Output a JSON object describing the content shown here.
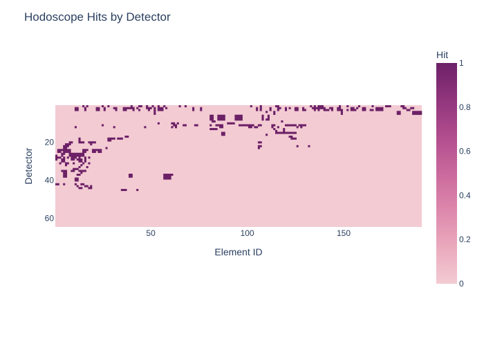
{
  "chart_data": {
    "type": "heatmap",
    "title": "Hodoscope Hits by Detector",
    "xlabel": "Element ID",
    "ylabel": "Detector",
    "colorbar_title": "Hit",
    "x_range": [
      1,
      190
    ],
    "y_range": [
      1,
      64
    ],
    "y_reversed": true,
    "x_ticks": [
      50,
      100,
      150
    ],
    "y_ticks": [
      20,
      40,
      60
    ],
    "z_range": [
      0,
      1
    ],
    "colorbar_ticks": [
      0,
      0.2,
      0.4,
      0.6,
      0.8,
      1
    ],
    "colorscale": [
      "#f3cbd3",
      "#eaa9bd",
      "#dd88ac",
      "#ca699d",
      "#b14d8e",
      "#91357d",
      "#6c2167"
    ],
    "hits": [
      [
        1,
        15
      ],
      [
        1,
        17
      ],
      [
        1,
        25
      ],
      [
        1,
        28
      ],
      [
        1,
        40
      ],
      [
        1,
        44
      ],
      [
        1,
        45
      ],
      [
        1,
        48
      ],
      [
        1,
        51
      ],
      [
        1,
        54
      ],
      [
        1,
        57
      ],
      [
        1,
        65
      ],
      [
        1,
        68
      ],
      [
        1,
        102
      ],
      [
        1,
        107
      ],
      [
        1,
        115
      ],
      [
        1,
        116
      ],
      [
        1,
        133
      ],
      [
        1,
        135
      ],
      [
        1,
        137
      ],
      [
        1,
        138
      ],
      [
        1,
        139
      ],
      [
        1,
        148
      ],
      [
        1,
        152
      ],
      [
        1,
        158
      ],
      [
        1,
        165
      ],
      [
        1,
        172
      ],
      [
        1,
        173
      ],
      [
        1,
        174
      ],
      [
        1,
        180
      ],
      [
        1,
        181
      ],
      [
        2,
        11
      ],
      [
        2,
        12
      ],
      [
        2,
        16
      ],
      [
        2,
        22
      ],
      [
        2,
        23
      ],
      [
        2,
        26
      ],
      [
        2,
        31
      ],
      [
        2,
        32
      ],
      [
        2,
        36
      ],
      [
        2,
        37
      ],
      [
        2,
        38
      ],
      [
        2,
        39
      ],
      [
        2,
        40
      ],
      [
        2,
        41
      ],
      [
        2,
        43
      ],
      [
        2,
        48
      ],
      [
        2,
        49
      ],
      [
        2,
        50
      ],
      [
        2,
        52
      ],
      [
        2,
        54
      ],
      [
        2,
        55
      ],
      [
        2,
        56
      ],
      [
        2,
        58
      ],
      [
        2,
        72
      ],
      [
        2,
        76
      ],
      [
        2,
        105
      ],
      [
        2,
        107
      ],
      [
        2,
        112
      ],
      [
        2,
        116
      ],
      [
        2,
        117
      ],
      [
        2,
        120
      ],
      [
        2,
        122
      ],
      [
        2,
        125
      ],
      [
        2,
        126
      ],
      [
        2,
        129
      ],
      [
        2,
        134
      ],
      [
        2,
        135
      ],
      [
        2,
        136
      ],
      [
        2,
        137
      ],
      [
        2,
        138
      ],
      [
        2,
        139
      ],
      [
        2,
        140
      ],
      [
        2,
        143
      ],
      [
        2,
        144
      ],
      [
        2,
        147
      ],
      [
        2,
        148
      ],
      [
        2,
        154
      ],
      [
        2,
        155
      ],
      [
        2,
        157
      ],
      [
        2,
        160
      ],
      [
        2,
        161
      ],
      [
        2,
        167
      ],
      [
        2,
        168
      ],
      [
        2,
        169
      ],
      [
        2,
        170
      ],
      [
        2,
        181
      ],
      [
        2,
        182
      ],
      [
        2,
        185
      ],
      [
        2,
        186
      ],
      [
        3,
        11
      ],
      [
        3,
        12
      ],
      [
        3,
        16
      ],
      [
        3,
        22
      ],
      [
        3,
        23
      ],
      [
        3,
        26
      ],
      [
        3,
        32
      ],
      [
        3,
        36
      ],
      [
        3,
        37
      ],
      [
        3,
        41
      ],
      [
        3,
        44
      ],
      [
        3,
        49
      ],
      [
        3,
        52
      ],
      [
        3,
        54
      ],
      [
        3,
        55
      ],
      [
        3,
        56
      ],
      [
        3,
        72
      ],
      [
        3,
        76
      ],
      [
        3,
        105
      ],
      [
        3,
        107
      ],
      [
        3,
        112
      ],
      [
        3,
        116
      ],
      [
        3,
        120
      ],
      [
        3,
        125
      ],
      [
        3,
        126
      ],
      [
        3,
        129
      ],
      [
        3,
        130
      ],
      [
        3,
        135
      ],
      [
        3,
        137
      ],
      [
        3,
        140
      ],
      [
        3,
        141
      ],
      [
        3,
        142
      ],
      [
        3,
        144
      ],
      [
        3,
        147
      ],
      [
        3,
        148
      ],
      [
        3,
        149
      ],
      [
        3,
        152
      ],
      [
        3,
        154
      ],
      [
        3,
        155
      ],
      [
        3,
        156
      ],
      [
        3,
        160
      ],
      [
        3,
        161
      ],
      [
        3,
        164
      ],
      [
        3,
        165
      ],
      [
        3,
        167
      ],
      [
        3,
        168
      ],
      [
        3,
        169
      ],
      [
        3,
        170
      ],
      [
        3,
        183
      ],
      [
        3,
        184
      ],
      [
        4,
        52
      ],
      [
        4,
        110
      ],
      [
        4,
        114
      ],
      [
        4,
        149
      ],
      [
        4,
        178
      ],
      [
        4,
        179
      ],
      [
        4,
        186
      ],
      [
        4,
        187
      ],
      [
        4,
        188
      ],
      [
        4,
        189
      ],
      [
        4,
        190
      ],
      [
        5,
        52
      ],
      [
        5,
        114
      ],
      [
        5,
        149
      ],
      [
        5,
        178
      ],
      [
        5,
        179
      ],
      [
        5,
        186
      ],
      [
        5,
        187
      ],
      [
        5,
        188
      ],
      [
        5,
        189
      ],
      [
        5,
        190
      ],
      [
        6,
        81
      ],
      [
        6,
        82
      ],
      [
        6,
        81
      ],
      [
        6,
        85
      ],
      [
        6,
        86
      ],
      [
        6,
        87
      ],
      [
        6,
        88
      ],
      [
        6,
        94
      ],
      [
        6,
        95
      ],
      [
        6,
        96
      ],
      [
        6,
        97
      ],
      [
        6,
        108
      ],
      [
        6,
        111
      ],
      [
        7,
        81
      ],
      [
        7,
        82
      ],
      [
        7,
        85
      ],
      [
        7,
        86
      ],
      [
        7,
        87
      ],
      [
        7,
        88
      ],
      [
        7,
        94
      ],
      [
        7,
        95
      ],
      [
        7,
        96
      ],
      [
        7,
        97
      ],
      [
        7,
        108
      ],
      [
        7,
        111
      ],
      [
        8,
        81
      ],
      [
        8,
        82
      ],
      [
        8,
        85
      ],
      [
        8,
        86
      ],
      [
        8,
        87
      ],
      [
        8,
        88
      ],
      [
        8,
        94
      ],
      [
        8,
        95
      ],
      [
        8,
        96
      ],
      [
        8,
        97
      ],
      [
        8,
        108
      ],
      [
        8,
        110
      ],
      [
        8,
        111
      ],
      [
        9,
        82
      ],
      [
        9,
        83
      ],
      [
        9,
        118
      ],
      [
        10,
        54
      ],
      [
        10,
        61
      ],
      [
        10,
        62
      ],
      [
        10,
        64
      ],
      [
        10,
        90
      ],
      [
        10,
        91
      ],
      [
        10,
        92
      ],
      [
        10,
        93
      ],
      [
        11,
        25
      ],
      [
        11,
        62
      ],
      [
        11,
        63
      ],
      [
        11,
        67
      ],
      [
        11,
        68
      ],
      [
        11,
        73
      ],
      [
        11,
        74
      ],
      [
        11,
        81
      ],
      [
        11,
        84
      ],
      [
        11,
        85
      ],
      [
        11,
        86
      ],
      [
        11,
        87
      ],
      [
        11,
        96
      ],
      [
        11,
        97
      ],
      [
        11,
        98
      ],
      [
        11,
        99
      ],
      [
        11,
        100
      ],
      [
        11,
        101
      ],
      [
        11,
        102
      ],
      [
        11,
        103
      ],
      [
        11,
        106
      ],
      [
        11,
        107
      ],
      [
        11,
        113
      ],
      [
        11,
        114
      ],
      [
        11,
        120
      ],
      [
        11,
        121
      ],
      [
        11,
        122
      ],
      [
        11,
        123
      ],
      [
        11,
        124
      ],
      [
        11,
        125
      ],
      [
        11,
        127
      ],
      [
        11,
        128
      ],
      [
        11,
        129
      ],
      [
        11,
        130
      ],
      [
        12,
        11
      ],
      [
        12,
        31
      ],
      [
        12,
        47
      ],
      [
        12,
        61
      ],
      [
        12,
        63
      ],
      [
        12,
        86
      ],
      [
        12,
        87
      ],
      [
        12,
        101
      ],
      [
        12,
        102
      ],
      [
        12,
        104
      ],
      [
        12,
        105
      ],
      [
        12,
        113
      ],
      [
        12,
        116
      ],
      [
        12,
        126
      ],
      [
        12,
        128
      ],
      [
        13,
        81
      ],
      [
        13,
        82
      ],
      [
        13,
        83
      ],
      [
        13,
        84
      ],
      [
        13,
        114
      ],
      [
        13,
        119
      ],
      [
        14,
        115
      ],
      [
        14,
        119
      ],
      [
        15,
        87
      ],
      [
        15,
        88
      ],
      [
        15,
        115
      ],
      [
        15,
        116
      ],
      [
        15,
        117
      ],
      [
        15,
        118
      ],
      [
        15,
        119
      ],
      [
        15,
        120
      ],
      [
        15,
        121
      ],
      [
        15,
        122
      ],
      [
        15,
        123
      ],
      [
        15,
        124
      ],
      [
        15,
        125
      ],
      [
        16,
        87
      ],
      [
        16,
        88
      ],
      [
        16,
        110
      ],
      [
        17,
        37
      ],
      [
        17,
        38
      ],
      [
        17,
        122
      ],
      [
        17,
        123
      ],
      [
        18,
        13
      ],
      [
        18,
        28
      ],
      [
        18,
        29
      ],
      [
        18,
        30
      ],
      [
        18,
        31
      ],
      [
        18,
        33
      ],
      [
        18,
        34
      ],
      [
        18,
        35
      ],
      [
        18,
        123
      ],
      [
        18,
        124
      ],
      [
        18,
        125
      ],
      [
        19,
        13
      ],
      [
        19,
        28
      ],
      [
        19,
        29
      ],
      [
        20,
        8
      ],
      [
        20,
        9
      ],
      [
        20,
        13
      ],
      [
        20,
        14
      ],
      [
        20,
        15
      ],
      [
        20,
        18
      ],
      [
        20,
        19
      ],
      [
        20,
        20
      ],
      [
        20,
        21
      ],
      [
        20,
        106
      ],
      [
        20,
        107
      ],
      [
        21,
        6
      ],
      [
        21,
        7
      ],
      [
        21,
        8
      ],
      [
        21,
        19
      ],
      [
        22,
        5
      ],
      [
        22,
        6
      ],
      [
        22,
        7
      ],
      [
        22,
        106
      ],
      [
        22,
        107
      ],
      [
        22,
        126
      ],
      [
        22,
        132
      ],
      [
        23,
        5
      ],
      [
        23,
        6
      ],
      [
        23,
        27
      ],
      [
        23,
        106
      ],
      [
        24,
        2
      ],
      [
        24,
        3
      ],
      [
        24,
        4
      ],
      [
        24,
        5
      ],
      [
        24,
        6
      ],
      [
        24,
        7
      ],
      [
        24,
        8
      ],
      [
        24,
        15
      ],
      [
        24,
        16
      ],
      [
        24,
        17
      ],
      [
        24,
        20
      ],
      [
        24,
        21
      ],
      [
        24,
        22
      ],
      [
        24,
        23
      ],
      [
        24,
        24
      ],
      [
        25,
        2
      ],
      [
        25,
        3
      ],
      [
        25,
        5
      ],
      [
        25,
        6
      ],
      [
        25,
        7
      ],
      [
        25,
        8
      ],
      [
        25,
        15
      ],
      [
        25,
        16
      ],
      [
        25,
        20
      ],
      [
        25,
        21
      ],
      [
        25,
        23
      ],
      [
        25,
        24
      ],
      [
        26,
        4
      ],
      [
        26,
        5
      ],
      [
        26,
        8
      ],
      [
        26,
        9
      ],
      [
        26,
        10
      ],
      [
        26,
        11
      ],
      [
        26,
        12
      ],
      [
        26,
        13
      ],
      [
        26,
        14
      ],
      [
        26,
        15
      ],
      [
        27,
        1
      ],
      [
        27,
        4
      ],
      [
        27,
        8
      ],
      [
        27,
        9
      ],
      [
        27,
        10
      ],
      [
        27,
        11
      ],
      [
        27,
        12
      ],
      [
        27,
        13
      ],
      [
        27,
        14
      ],
      [
        27,
        15
      ],
      [
        28,
        1
      ],
      [
        28,
        2
      ],
      [
        28,
        3
      ],
      [
        28,
        5
      ],
      [
        28,
        7
      ],
      [
        28,
        9
      ],
      [
        28,
        10
      ],
      [
        28,
        11
      ],
      [
        28,
        13
      ],
      [
        28,
        16
      ],
      [
        28,
        18
      ],
      [
        29,
        1
      ],
      [
        29,
        4
      ],
      [
        29,
        5
      ],
      [
        29,
        9
      ],
      [
        29,
        10
      ],
      [
        29,
        12
      ],
      [
        29,
        13
      ],
      [
        29,
        14
      ],
      [
        29,
        16
      ],
      [
        30,
        4
      ],
      [
        30,
        5
      ],
      [
        30,
        13
      ],
      [
        30,
        14
      ],
      [
        30,
        16
      ],
      [
        31,
        3
      ],
      [
        31,
        6
      ],
      [
        31,
        7
      ],
      [
        31,
        10
      ],
      [
        31,
        15
      ],
      [
        31,
        18
      ],
      [
        32,
        6
      ],
      [
        32,
        14
      ],
      [
        33,
        13
      ],
      [
        33,
        17
      ],
      [
        34,
        10
      ],
      [
        34,
        11
      ],
      [
        34,
        12
      ],
      [
        35,
        4
      ],
      [
        35,
        5
      ],
      [
        35,
        6
      ],
      [
        35,
        9
      ],
      [
        35,
        10
      ],
      [
        35,
        13
      ],
      [
        35,
        14
      ],
      [
        35,
        15
      ],
      [
        35,
        16
      ],
      [
        36,
        5
      ],
      [
        36,
        6
      ],
      [
        36,
        14
      ],
      [
        37,
        5
      ],
      [
        37,
        6
      ],
      [
        37,
        12
      ],
      [
        37,
        13
      ],
      [
        37,
        39
      ],
      [
        37,
        40
      ],
      [
        37,
        57
      ],
      [
        37,
        58
      ],
      [
        37,
        59
      ],
      [
        37,
        60
      ],
      [
        37,
        61
      ],
      [
        38,
        5
      ],
      [
        38,
        6
      ],
      [
        38,
        39
      ],
      [
        38,
        40
      ],
      [
        38,
        57
      ],
      [
        38,
        58
      ],
      [
        38,
        59
      ],
      [
        38,
        60
      ],
      [
        39,
        11
      ],
      [
        39,
        12
      ],
      [
        39,
        57
      ],
      [
        39,
        58
      ],
      [
        39,
        59
      ],
      [
        39,
        60
      ],
      [
        40,
        11
      ],
      [
        40,
        12
      ],
      [
        42,
        1
      ],
      [
        42,
        2
      ],
      [
        42,
        5
      ],
      [
        42,
        11
      ],
      [
        42,
        14
      ],
      [
        42,
        15
      ],
      [
        43,
        12
      ],
      [
        43,
        16
      ],
      [
        43,
        17
      ],
      [
        43,
        19
      ],
      [
        44,
        13
      ],
      [
        44,
        14
      ],
      [
        44,
        18
      ],
      [
        44,
        19
      ],
      [
        45,
        35
      ],
      [
        45,
        36
      ],
      [
        45,
        37
      ],
      [
        45,
        43
      ]
    ]
  }
}
